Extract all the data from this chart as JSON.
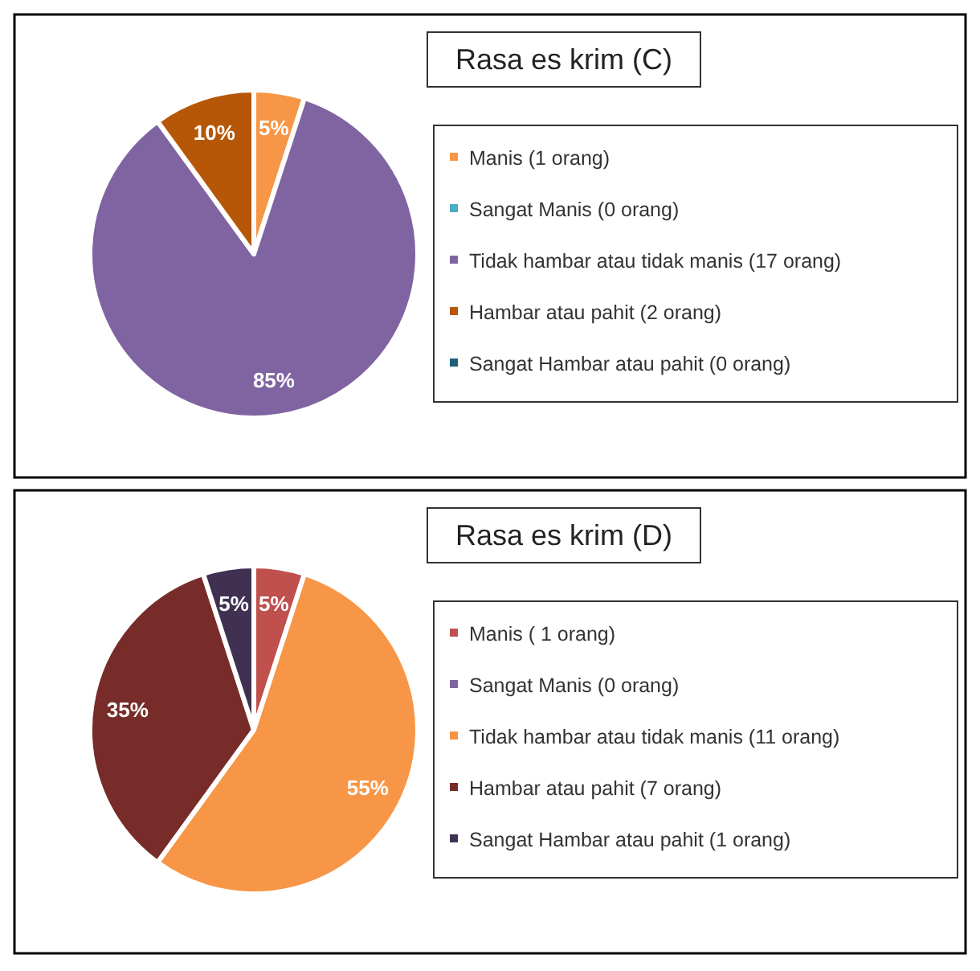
{
  "chart_data": [
    {
      "type": "pie",
      "title": "Rasa es krim (C)",
      "categories": [
        "Manis (1 orang)",
        "Sangat Manis (0 orang)",
        "Tidak hambar atau tidak manis (17 orang)",
        "Hambar atau pahit (2 orang)",
        "Sangat Hambar atau pahit (0 orang)"
      ],
      "values": [
        5,
        0,
        85,
        10,
        0
      ],
      "colors": [
        "#f79646",
        "#4bacc6",
        "#8064a2",
        "#b65708",
        "#1f5f7a"
      ],
      "value_labels": [
        "5%",
        null,
        "85%",
        "10%",
        null
      ],
      "legend": "right"
    },
    {
      "type": "pie",
      "title": "Rasa es krim (D)",
      "categories": [
        "Manis ( 1 orang)",
        "Sangat Manis (0 orang)",
        "Tidak hambar atau tidak manis (11 orang)",
        "Hambar atau pahit (7 orang)",
        "Sangat Hambar atau pahit (1 orang)"
      ],
      "values": [
        5,
        0,
        55,
        35,
        5
      ],
      "colors": [
        "#c0504d",
        "#8064a2",
        "#f79646",
        "#772c2a",
        "#403152"
      ],
      "value_labels": [
        "5%",
        null,
        "55%",
        "35%",
        "5%"
      ],
      "legend": "right"
    }
  ]
}
